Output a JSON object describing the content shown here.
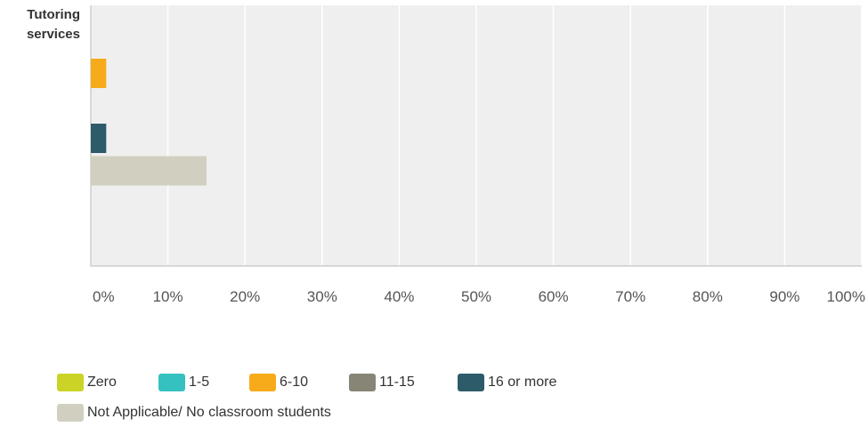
{
  "chart_data": {
    "type": "bar",
    "orientation": "horizontal",
    "categories": [
      "Tutoring\nservices"
    ],
    "series": [
      {
        "name": "Zero",
        "color": "#cbd426",
        "values": [
          0
        ]
      },
      {
        "name": "1-5",
        "color": "#36c1c1",
        "values": [
          0
        ]
      },
      {
        "name": "6-10",
        "color": "#f7ab1b",
        "values": [
          2
        ]
      },
      {
        "name": "11-15",
        "color": "#868576",
        "values": [
          0
        ]
      },
      {
        "name": "16 or more",
        "color": "#2d5b6a",
        "values": [
          2
        ]
      },
      {
        "name": "Not Applicable/ No classroom students",
        "color": "#d1d0c0",
        "values": [
          15
        ]
      }
    ],
    "xlim": [
      0,
      100
    ],
    "x_ticks": [
      "0%",
      "10%",
      "20%",
      "30%",
      "40%",
      "50%",
      "60%",
      "70%",
      "80%",
      "90%",
      "100%"
    ],
    "grid": true,
    "legend_position": "bottom"
  }
}
